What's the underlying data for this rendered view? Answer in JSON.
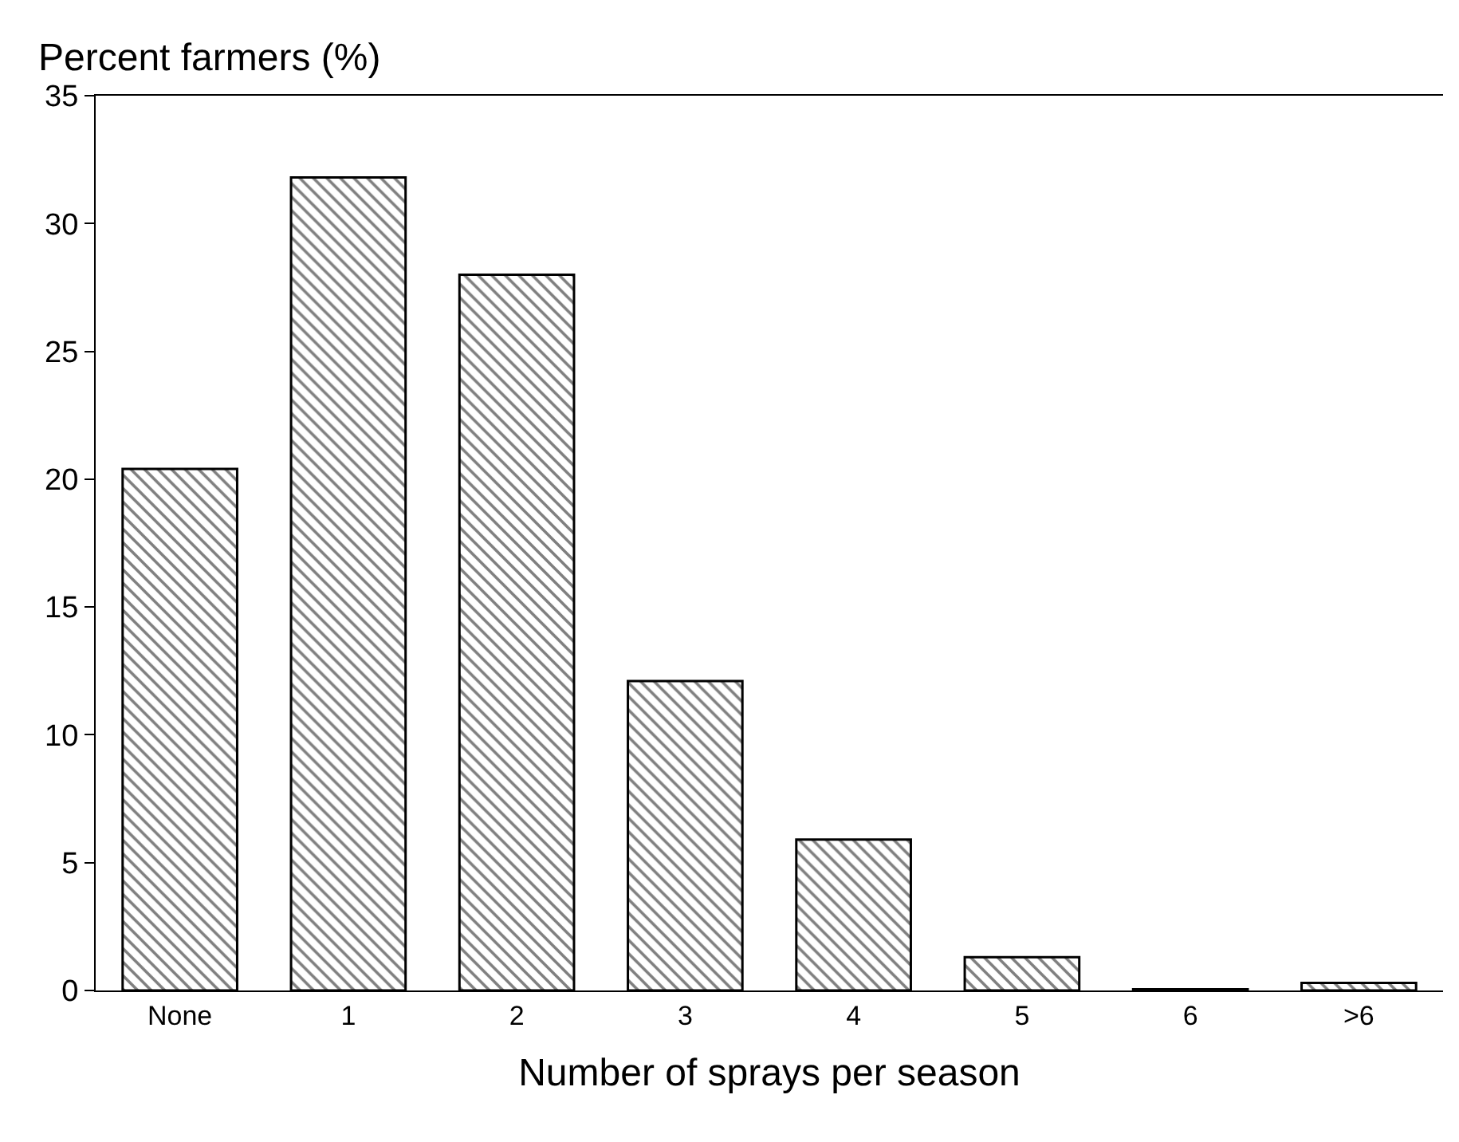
{
  "chart_data": {
    "type": "bar",
    "ylabel": "Percent farmers (%)",
    "xlabel": "Number of sprays per season",
    "categories": [
      "None",
      "1",
      "2",
      "3",
      "4",
      "5",
      "6",
      ">6"
    ],
    "values": [
      20.4,
      31.8,
      28.0,
      12.1,
      5.9,
      1.3,
      0.05,
      0.3
    ],
    "color": "#000000",
    "ylim": [
      0,
      35
    ],
    "yticks": [
      0,
      5,
      10,
      15,
      20,
      25,
      30,
      35
    ]
  }
}
